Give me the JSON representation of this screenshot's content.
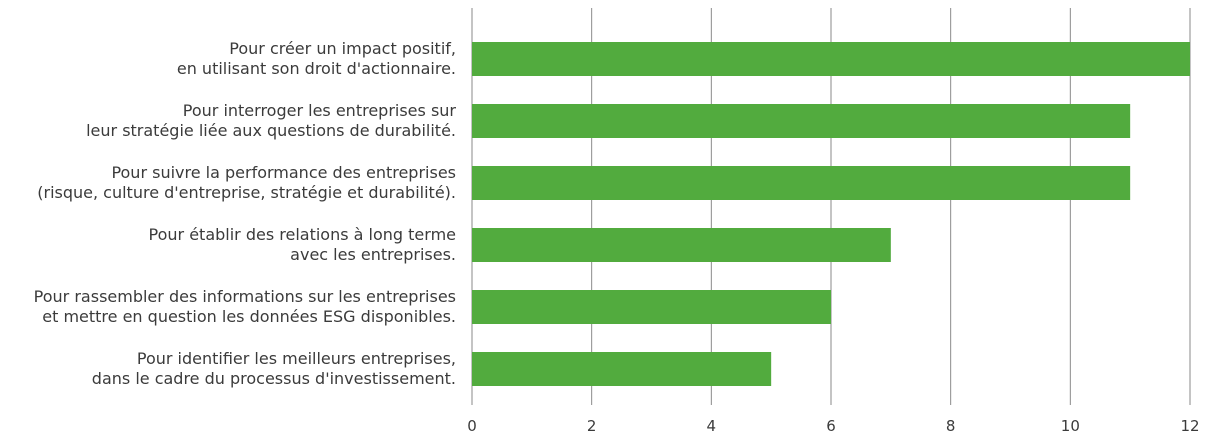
{
  "chart_data": {
    "type": "bar",
    "orientation": "horizontal",
    "categories": [
      [
        "Pour créer un impact positif,",
        "en utilisant son droit d'actionnaire."
      ],
      [
        "Pour interroger les entreprises sur",
        "leur stratégie liée aux questions de durabilité."
      ],
      [
        "Pour suivre la performance des entreprises",
        "(risque, culture d'entreprise, stratégie et durabilité)."
      ],
      [
        "Pour établir des relations à long terme",
        "avec les entreprises."
      ],
      [
        "Pour rassembler des informations sur les entreprises",
        "et mettre en question les données ESG disponibles."
      ],
      [
        "Pour identifier les meilleurs entreprises,",
        "dans le cadre du processus d'investissement."
      ]
    ],
    "values": [
      12,
      11,
      11,
      7,
      6,
      5
    ],
    "xlim": [
      0,
      12
    ],
    "xticks": [
      "0",
      "2",
      "4",
      "6",
      "8",
      "10",
      "12"
    ],
    "grid": "vertical",
    "bar_color": "#52ab3e"
  }
}
